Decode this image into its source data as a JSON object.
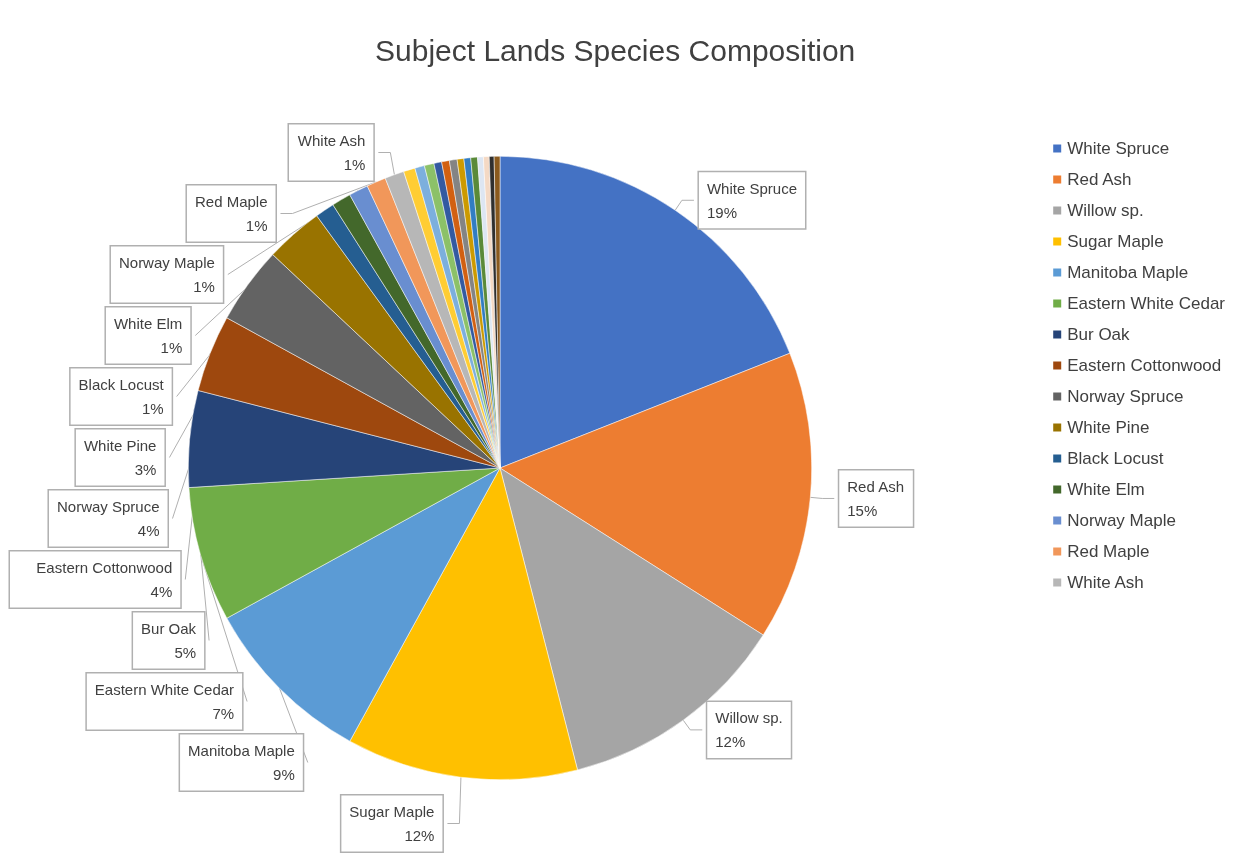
{
  "chart_data": {
    "type": "pie",
    "title": "Subject Lands Species Composition",
    "categories": [
      "White Spruce",
      "Red Ash",
      "Willow sp.",
      "Sugar Maple",
      "Manitoba Maple",
      "Eastern White Cedar",
      "Bur Oak",
      "Eastern Cottonwood",
      "Norway Spruce",
      "White Pine",
      "Black Locust",
      "White Elm",
      "Norway Maple",
      "Red Maple",
      "White Ash",
      null,
      null,
      null,
      null,
      null,
      null,
      null,
      null,
      null,
      null,
      null,
      null,
      null
    ],
    "values": [
      19,
      15,
      12,
      12,
      9,
      7,
      5,
      4,
      4,
      3,
      1,
      1,
      1,
      1,
      1,
      0.6,
      0.5,
      0.5,
      0.4,
      0.4,
      0.4,
      0.35,
      0.35,
      0.35,
      0.3,
      0.3,
      0.25,
      0.3
    ],
    "colors": [
      "#4472c4",
      "#ed7d31",
      "#a5a5a5",
      "#ffc000",
      "#5b9bd5",
      "#70ad47",
      "#264478",
      "#9e480e",
      "#636363",
      "#997300",
      "#255e91",
      "#43682b",
      "#698ed0",
      "#f1975a",
      "#b7b7b7",
      "#ffcd33",
      "#7cafdd",
      "#8cc168",
      "#335aa1",
      "#d26012",
      "#848484",
      "#cc9a00",
      "#327dc2",
      "#5a8a39",
      "#dde6f2",
      "#f4d9c4",
      "#2f2f2f",
      "#8a5a1e"
    ],
    "value_labels": [
      "19%",
      "15%",
      "12%",
      "12%",
      "9%",
      "7%",
      "5%",
      "4%",
      "4%",
      "3%",
      "1%",
      "1%",
      "1%",
      "1%",
      "1%",
      null,
      null,
      null,
      null,
      null,
      null,
      null,
      null,
      null,
      null,
      null,
      null,
      null
    ],
    "legend": "right"
  }
}
